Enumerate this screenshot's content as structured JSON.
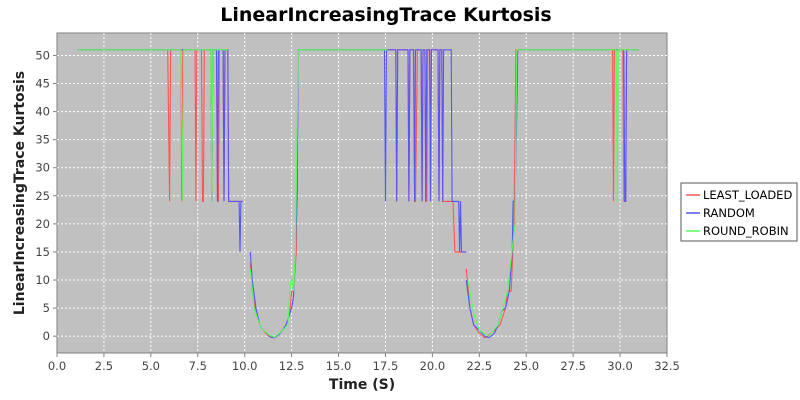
{
  "chart_data": {
    "type": "line",
    "title": "LinearIncreasingTrace Kurtosis",
    "xlabel": "Time (S)",
    "ylabel": "LinearIncreasingTrace Kurtosis",
    "xlim": [
      0,
      32.5
    ],
    "ylim": [
      -3,
      54
    ],
    "xticks": [
      "0.0",
      "2.5",
      "5.0",
      "7.5",
      "10.0",
      "12.5",
      "15.0",
      "17.5",
      "20.0",
      "22.5",
      "25.0",
      "27.5",
      "30.0",
      "32.5"
    ],
    "yticks": [
      "0",
      "5",
      "10",
      "15",
      "20",
      "25",
      "30",
      "35",
      "40",
      "45",
      "50"
    ],
    "grid": true,
    "legend": "right",
    "series": [
      {
        "name": "LEAST_LOADED",
        "color": "#ff5555",
        "points": [
          [
            1.1,
            51
          ],
          [
            5.9,
            51
          ],
          [
            6.0,
            24
          ],
          [
            6.05,
            51
          ],
          [
            6.6,
            51
          ],
          [
            6.65,
            24
          ],
          [
            6.7,
            51
          ],
          [
            7.35,
            51
          ],
          [
            7.4,
            24
          ],
          [
            7.45,
            51
          ],
          [
            7.7,
            51
          ],
          [
            7.75,
            24
          ],
          [
            7.8,
            24
          ],
          [
            7.85,
            51
          ],
          [
            8.2,
            51
          ],
          [
            8.25,
            24
          ],
          [
            8.3,
            51
          ],
          [
            8.5,
            51
          ],
          [
            8.55,
            24
          ],
          [
            8.6,
            24
          ],
          [
            8.65,
            51
          ],
          [
            8.85,
            51
          ],
          [
            8.9,
            24
          ],
          [
            8.95,
            51
          ],
          [
            9.1,
            51
          ],
          [
            9.15,
            24
          ],
          [
            9.2,
            24
          ],
          [
            9.9,
            24
          ],
          null,
          [
            10.3,
            13
          ],
          [
            10.4,
            8
          ],
          [
            10.6,
            4
          ],
          [
            10.8,
            2
          ],
          [
            11.0,
            1
          ],
          [
            11.2,
            0.2
          ],
          [
            11.4,
            -0.2
          ],
          [
            11.6,
            -0.3
          ],
          [
            11.8,
            0.2
          ],
          [
            12.0,
            1
          ],
          [
            12.2,
            2
          ],
          [
            12.4,
            4
          ],
          [
            12.5,
            8
          ],
          [
            12.6,
            8
          ],
          [
            12.75,
            15
          ],
          [
            12.85,
            51
          ],
          [
            17.6,
            51
          ],
          [
            18.05,
            51
          ],
          [
            18.1,
            24
          ],
          [
            18.15,
            51
          ],
          [
            18.7,
            51
          ],
          [
            18.75,
            24
          ],
          [
            18.8,
            51
          ],
          [
            19.0,
            51
          ],
          [
            19.05,
            24
          ],
          [
            19.1,
            24
          ],
          [
            19.2,
            51
          ],
          [
            19.4,
            51
          ],
          [
            19.45,
            24
          ],
          [
            19.5,
            51
          ],
          [
            19.6,
            51
          ],
          [
            19.65,
            24
          ],
          [
            19.7,
            24
          ],
          [
            19.75,
            51
          ],
          [
            19.85,
            51
          ],
          [
            19.9,
            24
          ],
          [
            19.95,
            51
          ],
          [
            20.3,
            51
          ],
          [
            20.35,
            24
          ],
          [
            20.4,
            51
          ],
          [
            20.5,
            51
          ],
          [
            20.55,
            24
          ],
          [
            20.6,
            24
          ],
          [
            21.1,
            24
          ],
          [
            21.2,
            15
          ],
          [
            21.5,
            15
          ],
          [
            21.8,
            15
          ],
          null,
          [
            21.8,
            12
          ],
          [
            22.0,
            5
          ],
          [
            22.2,
            2
          ],
          [
            22.5,
            0.5
          ],
          [
            22.8,
            -0.3
          ],
          [
            23.0,
            0.2
          ],
          [
            23.3,
            1
          ],
          [
            23.6,
            2
          ],
          [
            23.9,
            5
          ],
          [
            24.0,
            8
          ],
          [
            24.2,
            8
          ],
          [
            24.35,
            20
          ],
          [
            24.45,
            51
          ],
          [
            29.6,
            51
          ],
          [
            29.65,
            24
          ],
          [
            29.7,
            51
          ],
          [
            30.15,
            51
          ],
          [
            30.2,
            24
          ],
          [
            30.3,
            24
          ],
          [
            30.35,
            51
          ],
          [
            31.0,
            51
          ]
        ]
      },
      {
        "name": "RANDOM",
        "color": "#5555ff",
        "points": [
          [
            1.1,
            51
          ],
          [
            5.9,
            51
          ],
          [
            5.95,
            51
          ],
          [
            6.6,
            51
          ],
          [
            7.35,
            51
          ],
          [
            7.75,
            51
          ],
          [
            8.2,
            51
          ],
          [
            8.25,
            24
          ],
          [
            8.3,
            51
          ],
          [
            8.5,
            51
          ],
          [
            8.55,
            24
          ],
          [
            8.6,
            51
          ],
          [
            8.85,
            51
          ],
          [
            8.9,
            24
          ],
          [
            8.95,
            51
          ],
          [
            9.1,
            51
          ],
          [
            9.15,
            24
          ],
          [
            9.3,
            24
          ],
          [
            9.7,
            24
          ],
          [
            9.75,
            15
          ],
          [
            9.8,
            24
          ],
          [
            9.9,
            24
          ],
          null,
          [
            10.3,
            15
          ],
          [
            10.4,
            10
          ],
          [
            10.6,
            5
          ],
          [
            10.8,
            2
          ],
          [
            11.0,
            1
          ],
          [
            11.2,
            0.5
          ],
          [
            11.4,
            -0.2
          ],
          [
            11.6,
            -0.3
          ],
          [
            11.8,
            0.2
          ],
          [
            12.0,
            1
          ],
          [
            12.2,
            2
          ],
          [
            12.4,
            4
          ],
          [
            12.5,
            5
          ],
          [
            12.6,
            7
          ],
          [
            12.7,
            15
          ],
          [
            12.8,
            25
          ],
          [
            12.85,
            51
          ],
          [
            17.45,
            51
          ],
          [
            17.5,
            24
          ],
          [
            17.55,
            51
          ],
          [
            18.05,
            51
          ],
          [
            18.1,
            24
          ],
          [
            18.15,
            51
          ],
          [
            18.7,
            51
          ],
          [
            18.75,
            24
          ],
          [
            18.8,
            51
          ],
          [
            19.0,
            51
          ],
          [
            19.05,
            24
          ],
          [
            19.1,
            51
          ],
          [
            19.4,
            51
          ],
          [
            19.45,
            24
          ],
          [
            19.5,
            51
          ],
          [
            19.6,
            51
          ],
          [
            19.65,
            24
          ],
          [
            19.7,
            51
          ],
          [
            19.85,
            51
          ],
          [
            19.9,
            24
          ],
          [
            19.95,
            51
          ],
          [
            20.3,
            51
          ],
          [
            20.35,
            24
          ],
          [
            20.4,
            51
          ],
          [
            20.5,
            51
          ],
          [
            20.55,
            24
          ],
          [
            20.6,
            51
          ],
          [
            21.0,
            51
          ],
          [
            21.05,
            24
          ],
          [
            21.1,
            24
          ],
          [
            21.4,
            24
          ],
          [
            21.45,
            15
          ],
          [
            21.5,
            24
          ],
          [
            21.55,
            15
          ],
          [
            21.8,
            15
          ],
          null,
          [
            21.8,
            10
          ],
          [
            22.0,
            5
          ],
          [
            22.2,
            2
          ],
          [
            22.5,
            1
          ],
          [
            22.8,
            0
          ],
          [
            23.0,
            -0.3
          ],
          [
            23.3,
            0.5
          ],
          [
            23.5,
            2
          ],
          [
            23.7,
            4.5
          ],
          [
            23.9,
            5
          ],
          [
            24.1,
            8
          ],
          [
            24.25,
            15
          ],
          [
            24.3,
            24
          ],
          [
            24.4,
            24
          ],
          [
            24.5,
            40
          ],
          [
            24.55,
            51
          ],
          [
            29.9,
            51
          ],
          [
            30.2,
            51
          ],
          [
            30.25,
            24
          ],
          [
            30.3,
            24
          ],
          [
            30.35,
            51
          ],
          [
            31.0,
            51
          ]
        ]
      },
      {
        "name": "ROUND_ROBIN",
        "color": "#55ff55",
        "points": [
          [
            1.1,
            51
          ],
          [
            6.6,
            51
          ],
          [
            6.7,
            24
          ],
          [
            6.75,
            51
          ],
          [
            8.2,
            51
          ],
          [
            8.25,
            24
          ],
          [
            8.3,
            51
          ],
          [
            9.1,
            51
          ],
          null,
          [
            10.3,
            12
          ],
          [
            10.5,
            5
          ],
          [
            10.8,
            2
          ],
          [
            11.0,
            1
          ],
          [
            11.3,
            0.2
          ],
          [
            11.6,
            -0.2
          ],
          [
            12.0,
            1
          ],
          [
            12.3,
            2
          ],
          [
            12.4,
            8
          ],
          [
            12.5,
            10.5
          ],
          [
            12.6,
            8
          ],
          [
            12.7,
            15
          ],
          [
            12.85,
            51
          ],
          [
            17.6,
            51
          ],
          null,
          [
            21.9,
            10
          ],
          [
            22.2,
            4
          ],
          [
            22.5,
            1
          ],
          [
            23.0,
            0
          ],
          [
            23.5,
            2
          ],
          [
            24.0,
            8
          ],
          [
            24.4,
            20
          ],
          [
            24.5,
            51
          ],
          [
            29.7,
            51
          ],
          [
            29.8,
            51
          ],
          [
            29.85,
            24
          ],
          [
            29.9,
            51
          ],
          [
            31.0,
            51
          ]
        ]
      }
    ]
  }
}
